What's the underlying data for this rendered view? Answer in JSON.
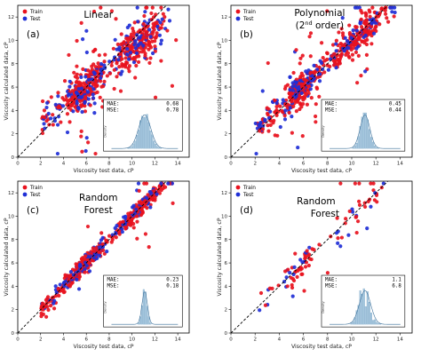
{
  "colors": {
    "train": "#e8121e",
    "test": "#1f2fd6",
    "hist": "#a8c8df",
    "hist_edge": "#5b8fb5",
    "kde": "#3a6f99",
    "ideal_line": "#000000"
  },
  "chart_data": [
    {
      "type": "scatter",
      "panel_label": "(a)",
      "title": "Linear",
      "title_superscript": "",
      "title_suffix": "",
      "xlabel": "Viscosity test data, cP",
      "ylabel": "Viscosity calculated data, cP",
      "xlim": [
        0,
        15
      ],
      "ylim": [
        0,
        13
      ],
      "xticks": [
        "0",
        "2",
        "4",
        "6",
        "8",
        "10",
        "12",
        "14"
      ],
      "yticks": [
        "0",
        "2",
        "4",
        "6",
        "8",
        "10",
        "12"
      ],
      "legend": [
        "Train",
        "Test"
      ],
      "legend_position": "top-left",
      "mae_label": "MAE:",
      "mae": "0.68",
      "mse_label": "MSE:",
      "mse": "0.78",
      "inset_ylabel": "Density",
      "inset_xticks": [
        "0",
        "10",
        "20"
      ],
      "inset_yticks": [
        "0.0",
        "0.1",
        "0.2"
      ],
      "spread": 0.8,
      "slope": 0.8,
      "intercept": 1.3,
      "offgrid": 0.14,
      "ideal_line": "dashed y=x"
    },
    {
      "type": "scatter",
      "panel_label": "(b)",
      "title": "Polynomial",
      "title_superscript": "nd",
      "title_prefix": "(2",
      "title_suffix": " order)",
      "xlabel": "Viscosity test data, cP",
      "ylabel": "Viscosity calculated data, cP",
      "xlim": [
        0,
        15
      ],
      "ylim": [
        0,
        13
      ],
      "xticks": [
        "0",
        "2",
        "4",
        "6",
        "8",
        "10",
        "12",
        "14"
      ],
      "yticks": [
        "0",
        "2",
        "4",
        "6",
        "8",
        "10",
        "12"
      ],
      "legend": [
        "Train",
        "Test"
      ],
      "legend_position": "top-left",
      "mae_label": "MAE:",
      "mae": "0.45",
      "mse_label": "MSE:",
      "mse": "0.44",
      "inset_ylabel": "Density",
      "inset_xticks": [
        "0",
        "10",
        "20"
      ],
      "inset_yticks": [
        "0.0",
        "0.1",
        "0.2"
      ],
      "spread": 0.6,
      "slope": 0.95,
      "intercept": 0.4,
      "offgrid": 0.1,
      "ideal_line": "dashed y=x"
    },
    {
      "type": "scatter",
      "panel_label": "(c)",
      "title": "Random",
      "title_line2": "Forest",
      "title_superscript": "",
      "title_suffix": "",
      "xlabel": "Viscosity test data, cP",
      "ylabel": "Viscosity calculated data, cP",
      "xlim": [
        0,
        15
      ],
      "ylim": [
        0,
        13
      ],
      "xticks": [
        "0",
        "2",
        "4",
        "6",
        "8",
        "10",
        "12",
        "14"
      ],
      "yticks": [
        "0",
        "2",
        "4",
        "6",
        "8",
        "10",
        "12"
      ],
      "legend": [
        "Train",
        "Test"
      ],
      "legend_position": "top-left",
      "mae_label": "MAE:",
      "mae": "0.23",
      "mse_label": "MSE:",
      "mse": "0.18",
      "inset_ylabel": "Density",
      "inset_xticks": [
        "0",
        "10",
        "20"
      ],
      "inset_yticks": [
        "0.0",
        "0.1",
        "0.2"
      ],
      "spread": 0.35,
      "slope": 1.0,
      "intercept": 0.0,
      "offgrid": 0.04,
      "ideal_line": "dashed y=x"
    },
    {
      "type": "scatter",
      "panel_label": "(d)",
      "title": "Random",
      "title_line2": "Forest",
      "title_superscript": "",
      "title_suffix": "",
      "xlabel": "Viscosity test data, cP",
      "ylabel": "Viscosity calculated data, cP",
      "xlim": [
        0,
        15
      ],
      "ylim": [
        0,
        13
      ],
      "xticks": [
        "0",
        "2",
        "4",
        "6",
        "8",
        "10",
        "12",
        "14"
      ],
      "yticks": [
        "0",
        "2",
        "4",
        "6",
        "8",
        "10",
        "12"
      ],
      "legend": [
        "Train",
        "Test"
      ],
      "legend_position": "top-left",
      "mae_label": "MAE:",
      "mae": "1.1",
      "mse_label": "MSE:",
      "mse": "6.8",
      "inset_ylabel": "Density",
      "inset_xticks": [
        "0",
        "10",
        "20"
      ],
      "inset_yticks": [
        "0.0",
        "0.1",
        "0.2"
      ],
      "spread": 0.55,
      "slope": 1.0,
      "intercept": 0.0,
      "offgrid": 0.12,
      "sparse": true,
      "ideal_line": "dashed y=x"
    }
  ]
}
